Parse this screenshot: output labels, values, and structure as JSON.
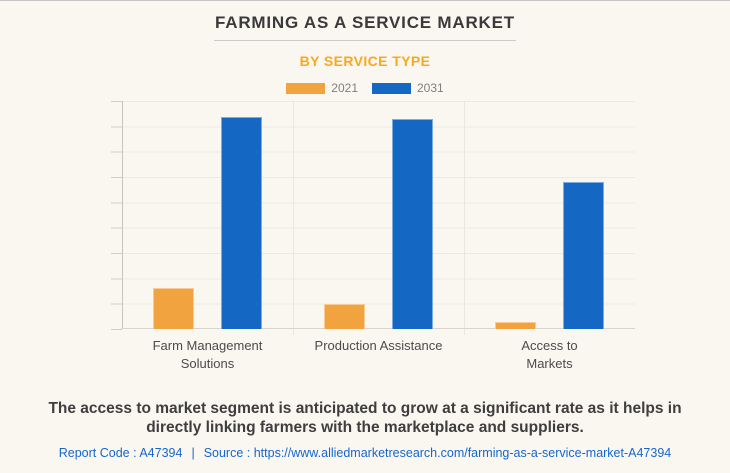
{
  "header": {
    "title": "FARMING AS A SERVICE MARKET",
    "subtitle": "BY SERVICE TYPE"
  },
  "chart_data": {
    "type": "bar",
    "title": "FARMING AS A SERVICE MARKET",
    "subtitle": "BY SERVICE TYPE",
    "categories": [
      "Farm Management Solutions",
      "Production Assistance",
      "Access to Markets"
    ],
    "category_label_lines": [
      [
        "Farm Management",
        "Solutions"
      ],
      [
        "Production Assistance"
      ],
      [
        "Access to",
        "Markets"
      ]
    ],
    "series": [
      {
        "name": "2021",
        "color": "#F0A33F",
        "values": [
          18.2,
          10.9,
          2.9
        ]
      },
      {
        "name": "2031",
        "color": "#1567C4",
        "values": [
          93.0,
          92.1,
          64.5
        ]
      }
    ],
    "value_unit": "percent of plot height (no numeric y-axis labels shown)",
    "y_axis": {
      "min": 0,
      "max": 100,
      "gridline_intervals": 9,
      "tick_labels_visible": false
    },
    "xlabel": "",
    "ylabel": "",
    "grid": "horizontal",
    "legend_position": "top"
  },
  "footer": {
    "note_line1": "The access to market segment is anticipated to grow at a significant rate as it helps in",
    "note_line2": "directly linking farmers with the marketplace and suppliers.",
    "report_code": "Report Code : A47394",
    "separator": "|",
    "source_label": "Source :",
    "source_url": "https://www.alliedmarketresearch.com/farming-as-a-service-market-A47394"
  },
  "colors": {
    "background": "#FAF7F1",
    "subtitle_orange": "#FBA71B",
    "bar_2021": "#F0A33F",
    "bar_2031": "#1567C4",
    "link_blue": "#1766CC"
  }
}
